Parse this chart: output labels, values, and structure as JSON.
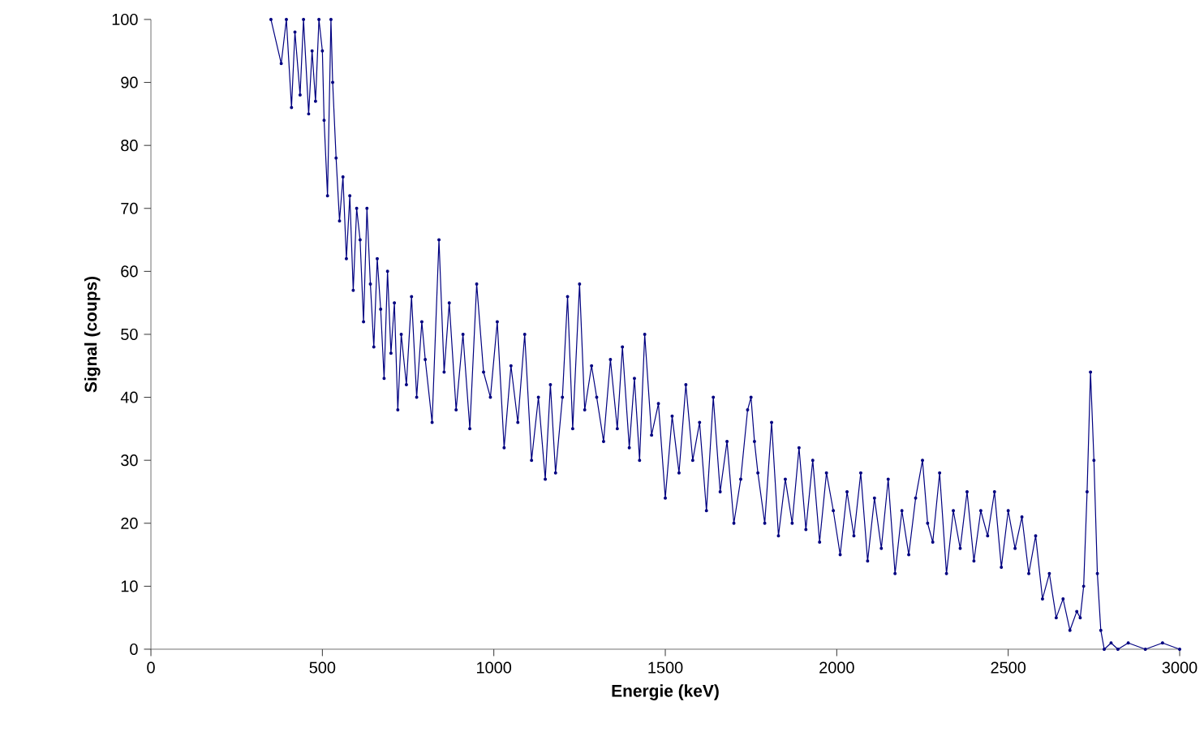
{
  "chart_data": {
    "type": "line",
    "xlabel": "Energie (keV)",
    "ylabel": "Signal (coups)",
    "xlim": [
      0,
      3000
    ],
    "ylim": [
      0,
      100
    ],
    "xticks": [
      0,
      500,
      1000,
      1500,
      2000,
      2500,
      3000
    ],
    "yticks": [
      0,
      10,
      20,
      30,
      40,
      50,
      60,
      70,
      80,
      90,
      100
    ],
    "grid": false,
    "marker": "circle",
    "line_style": "solid",
    "series": [
      {
        "color": "#000080",
        "x": [
          350,
          380,
          395,
          410,
          420,
          435,
          445,
          460,
          470,
          480,
          490,
          500,
          505,
          515,
          525,
          530,
          540,
          550,
          560,
          570,
          580,
          590,
          600,
          610,
          620,
          630,
          640,
          650,
          660,
          670,
          680,
          690,
          700,
          710,
          720,
          730,
          745,
          760,
          775,
          790,
          800,
          820,
          840,
          855,
          870,
          890,
          910,
          930,
          950,
          970,
          990,
          1010,
          1030,
          1050,
          1070,
          1090,
          1110,
          1130,
          1150,
          1165,
          1180,
          1200,
          1215,
          1230,
          1250,
          1265,
          1285,
          1300,
          1320,
          1340,
          1360,
          1375,
          1395,
          1410,
          1425,
          1440,
          1460,
          1480,
          1500,
          1520,
          1540,
          1560,
          1580,
          1600,
          1620,
          1640,
          1660,
          1680,
          1700,
          1720,
          1740,
          1750,
          1760,
          1770,
          1790,
          1810,
          1830,
          1850,
          1870,
          1890,
          1910,
          1930,
          1950,
          1970,
          1990,
          2010,
          2030,
          2050,
          2070,
          2090,
          2110,
          2130,
          2150,
          2170,
          2190,
          2210,
          2230,
          2250,
          2265,
          2280,
          2300,
          2320,
          2340,
          2360,
          2380,
          2400,
          2420,
          2440,
          2460,
          2480,
          2500,
          2520,
          2540,
          2560,
          2580,
          2600,
          2620,
          2640,
          2660,
          2680,
          2700,
          2710,
          2720,
          2730,
          2740,
          2750,
          2760,
          2770,
          2780,
          2800,
          2820,
          2850,
          2900,
          2950,
          3000
        ],
        "values": [
          100,
          93,
          100,
          86,
          98,
          88,
          100,
          85,
          95,
          87,
          100,
          95,
          84,
          72,
          100,
          90,
          78,
          68,
          75,
          62,
          72,
          57,
          70,
          65,
          52,
          70,
          58,
          48,
          62,
          54,
          43,
          60,
          47,
          55,
          38,
          50,
          42,
          56,
          40,
          52,
          46,
          36,
          65,
          44,
          55,
          38,
          50,
          35,
          58,
          44,
          40,
          52,
          32,
          45,
          36,
          50,
          30,
          40,
          27,
          42,
          28,
          40,
          56,
          35,
          58,
          38,
          45,
          40,
          33,
          46,
          35,
          48,
          32,
          43,
          30,
          50,
          34,
          39,
          24,
          37,
          28,
          42,
          30,
          36,
          22,
          40,
          25,
          33,
          20,
          27,
          38,
          40,
          33,
          28,
          20,
          36,
          18,
          27,
          20,
          32,
          19,
          30,
          17,
          28,
          22,
          15,
          25,
          18,
          28,
          14,
          24,
          16,
          27,
          12,
          22,
          15,
          24,
          30,
          20,
          17,
          28,
          12,
          22,
          16,
          25,
          14,
          22,
          18,
          25,
          13,
          22,
          16,
          21,
          12,
          18,
          8,
          12,
          5,
          8,
          3,
          6,
          5,
          10,
          25,
          44,
          30,
          12,
          3,
          0,
          1,
          0,
          1,
          0,
          1,
          0
        ]
      }
    ]
  }
}
